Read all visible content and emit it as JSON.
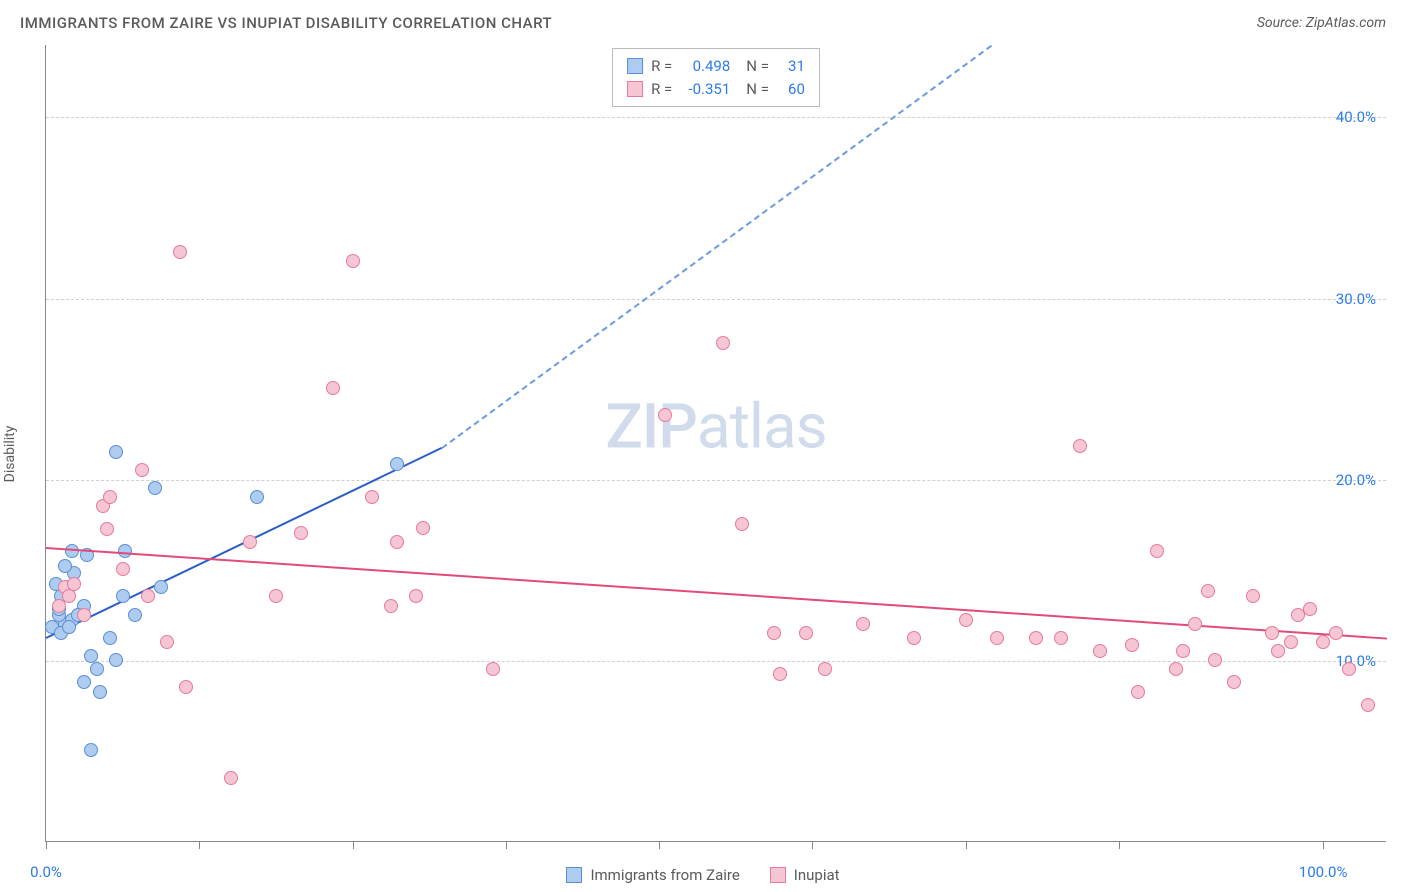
{
  "header": {
    "title": "IMMIGRANTS FROM ZAIRE VS INUPIAT DISABILITY CORRELATION CHART",
    "source": "Source: ZipAtlas.com"
  },
  "chart": {
    "type": "scatter",
    "ylabel": "Disability",
    "watermark": {
      "strong": "ZIP",
      "light": "atlas"
    },
    "background_color": "#ffffff",
    "grid_color": "#d0d0d0",
    "axis_color": "#888888",
    "label_color": "#5a5a5a",
    "tick_color": "#2b7ce9",
    "xlim": [
      0,
      105
    ],
    "ylim": [
      0,
      44
    ],
    "yticks": [
      {
        "v": 10,
        "label": "10.0%"
      },
      {
        "v": 20,
        "label": "20.0%"
      },
      {
        "v": 30,
        "label": "30.0%"
      },
      {
        "v": 40,
        "label": "40.0%"
      }
    ],
    "xticks": [
      {
        "v": 0,
        "label": "0.0%"
      },
      {
        "v": 12,
        "label": ""
      },
      {
        "v": 24,
        "label": ""
      },
      {
        "v": 36,
        "label": ""
      },
      {
        "v": 48,
        "label": ""
      },
      {
        "v": 60,
        "label": ""
      },
      {
        "v": 72,
        "label": ""
      },
      {
        "v": 84,
        "label": ""
      },
      {
        "v": 100,
        "label": "100.0%"
      }
    ],
    "point_radius": 7,
    "series": [
      {
        "name": "Immigrants from Zaire",
        "fill": "#aeccef",
        "stroke": "#5a8fd6",
        "r_value": "0.498",
        "n_value": "31",
        "trend": {
          "x1": 0,
          "y1": 11.3,
          "x2": 31,
          "y2": 21.8,
          "solid_color": "#2b5fc4",
          "dash_to_x": 74,
          "dash_to_y": 44
        },
        "points": [
          [
            1.5,
            12.0
          ],
          [
            1.0,
            12.5
          ],
          [
            2.0,
            12.2
          ],
          [
            1.2,
            13.5
          ],
          [
            0.8,
            14.2
          ],
          [
            1.8,
            14.0
          ],
          [
            2.2,
            14.8
          ],
          [
            1.5,
            15.2
          ],
          [
            3.0,
            13.0
          ],
          [
            3.2,
            15.8
          ],
          [
            2.0,
            16.0
          ],
          [
            1.0,
            12.8
          ],
          [
            0.5,
            11.8
          ],
          [
            1.2,
            11.5
          ],
          [
            2.5,
            12.5
          ],
          [
            1.8,
            11.8
          ],
          [
            3.5,
            10.2
          ],
          [
            4.0,
            9.5
          ],
          [
            5.5,
            10.0
          ],
          [
            3.0,
            8.8
          ],
          [
            4.2,
            8.2
          ],
          [
            3.5,
            5.0
          ],
          [
            7.0,
            12.5
          ],
          [
            6.0,
            13.5
          ],
          [
            6.2,
            16.0
          ],
          [
            5.5,
            21.5
          ],
          [
            8.5,
            19.5
          ],
          [
            9.0,
            14.0
          ],
          [
            16.5,
            19.0
          ],
          [
            27.5,
            20.8
          ],
          [
            5.0,
            11.2
          ]
        ]
      },
      {
        "name": "Inupiat",
        "fill": "#f7c6d5",
        "stroke": "#e67a9a",
        "r_value": "-0.351",
        "n_value": "60",
        "trend": {
          "x1": 0,
          "y1": 16.3,
          "x2": 105,
          "y2": 11.3,
          "solid_color": "#e04b78"
        },
        "points": [
          [
            1.0,
            13.0
          ],
          [
            1.5,
            14.0
          ],
          [
            1.8,
            13.5
          ],
          [
            2.2,
            14.2
          ],
          [
            3.0,
            12.5
          ],
          [
            4.5,
            18.5
          ],
          [
            5.0,
            19.0
          ],
          [
            4.8,
            17.2
          ],
          [
            6.0,
            15.0
          ],
          [
            7.5,
            20.5
          ],
          [
            8.0,
            13.5
          ],
          [
            9.5,
            11.0
          ],
          [
            11.0,
            8.5
          ],
          [
            10.5,
            32.5
          ],
          [
            14.5,
            3.5
          ],
          [
            16.0,
            16.5
          ],
          [
            18.0,
            13.5
          ],
          [
            20.0,
            17.0
          ],
          [
            22.5,
            25.0
          ],
          [
            25.5,
            19.0
          ],
          [
            24.0,
            32.0
          ],
          [
            27.0,
            13.0
          ],
          [
            27.5,
            16.5
          ],
          [
            29.5,
            17.3
          ],
          [
            29.0,
            13.5
          ],
          [
            35.0,
            9.5
          ],
          [
            48.5,
            23.5
          ],
          [
            53.0,
            27.5
          ],
          [
            54.5,
            17.5
          ],
          [
            57.0,
            11.5
          ],
          [
            57.5,
            9.2
          ],
          [
            59.5,
            11.5
          ],
          [
            61.0,
            9.5
          ],
          [
            64.0,
            12.0
          ],
          [
            68.0,
            11.2
          ],
          [
            72.0,
            12.2
          ],
          [
            74.5,
            11.2
          ],
          [
            77.5,
            11.2
          ],
          [
            79.5,
            11.2
          ],
          [
            81.0,
            21.8
          ],
          [
            82.5,
            10.5
          ],
          [
            85.0,
            10.8
          ],
          [
            85.5,
            8.2
          ],
          [
            87.0,
            16.0
          ],
          [
            88.5,
            9.5
          ],
          [
            89.0,
            10.5
          ],
          [
            91.0,
            13.8
          ],
          [
            91.5,
            10.0
          ],
          [
            93.0,
            8.8
          ],
          [
            94.5,
            13.5
          ],
          [
            96.0,
            11.5
          ],
          [
            96.5,
            10.5
          ],
          [
            97.5,
            11.0
          ],
          [
            98.0,
            12.5
          ],
          [
            99.0,
            12.8
          ],
          [
            100.0,
            11.0
          ],
          [
            101.0,
            11.5
          ],
          [
            102.0,
            9.5
          ],
          [
            103.5,
            7.5
          ],
          [
            90.0,
            12.0
          ]
        ]
      }
    ]
  },
  "stats_box": {
    "r_label": "R =",
    "n_label": "N ="
  },
  "legend": {
    "items": [
      "Immigrants from Zaire",
      "Inupiat"
    ]
  }
}
